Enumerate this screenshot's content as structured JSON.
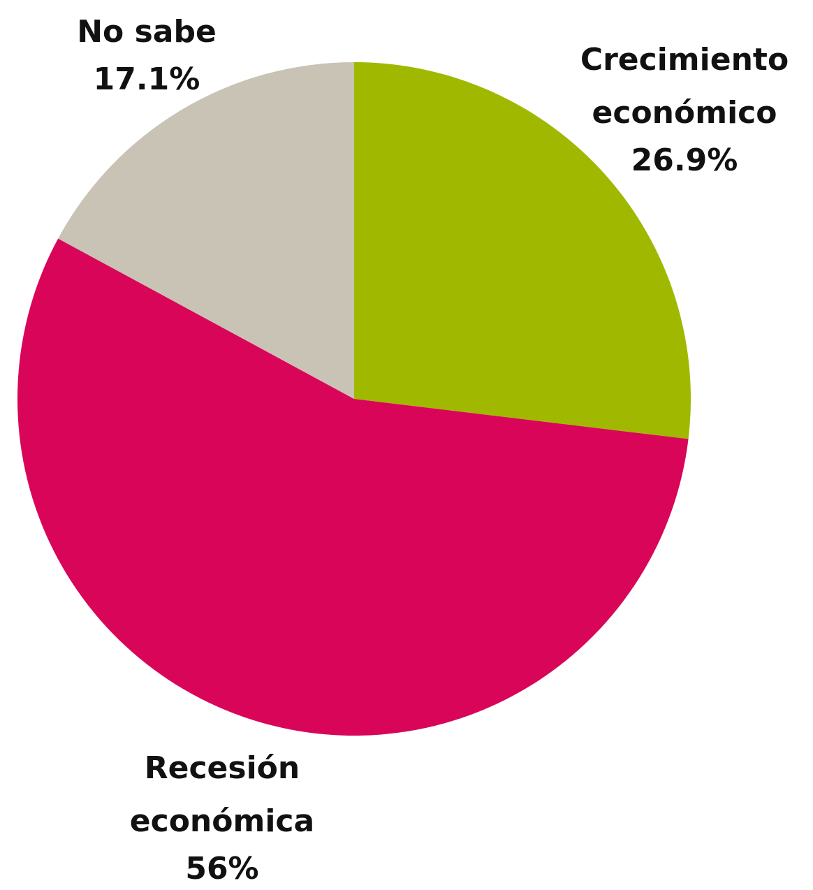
{
  "chart_data": {
    "type": "pie",
    "categories": [
      "Crecimiento económico",
      "Recesión económica",
      "No sabe"
    ],
    "values": [
      26.9,
      56,
      17.1
    ],
    "value_labels": [
      "26.9%",
      "56%",
      "17.1%"
    ],
    "colors": [
      "#a0b900",
      "#d90558",
      "#c9c3b5"
    ]
  }
}
